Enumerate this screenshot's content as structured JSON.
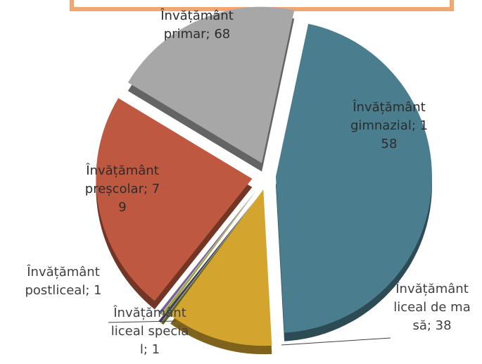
{
  "chart_data": {
    "type": "pie",
    "categories": [
      "Învățământ gimnazial",
      "Învățământ liceal de masă",
      "Învățământ liceal special",
      "Învățământ postliceal",
      "Învățământ preșcolar",
      "Învățământ primar"
    ],
    "values": [
      158,
      38,
      1,
      1,
      79,
      68
    ],
    "value_labels": [
      "Învățământ gimnazial; 158",
      "Învățământ liceal de masă; 38",
      "Învățământ liceal special; 1",
      "Învățământ postliceal; 1",
      "Învățământ preșcolar; 79",
      "Învățământ primar; 68"
    ],
    "colors": [
      "#4a7d8d",
      "#d4a52e",
      "#94ab3c",
      "#7d5c9c",
      "#bf5840",
      "#a7a7a7"
    ]
  }
}
